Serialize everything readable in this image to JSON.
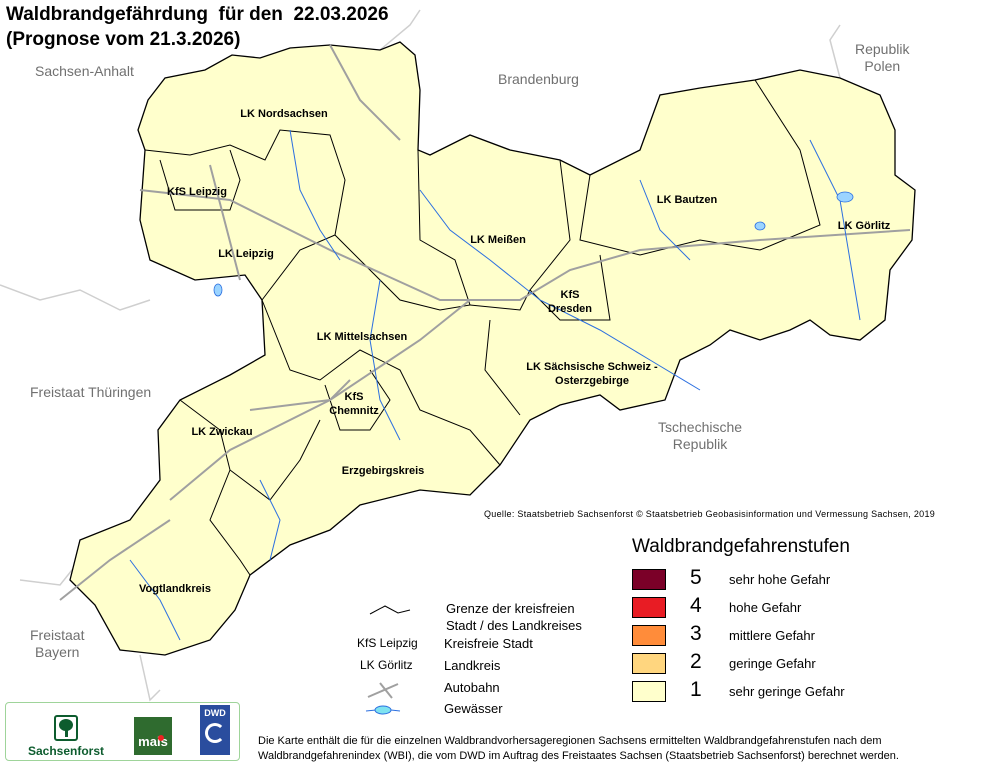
{
  "title": {
    "line1": "Waldbrandgefährdung  für den  22.03.2026",
    "line2": "(Prognose vom 21.3.2026)"
  },
  "neighbours": {
    "sachsen_anhalt": "Sachsen-Anhalt",
    "brandenburg": "Brandenburg",
    "polen": "Republik\nPolen",
    "thueringen": "Freistaat Thüringen",
    "tschechien": "Tschechische\nRepublik",
    "bayern": "Freistaat\nBayern"
  },
  "regions": [
    {
      "name": "LK Nordsachsen",
      "level": 1
    },
    {
      "name": "KfS Leipzig",
      "level": 1
    },
    {
      "name": "LK Leipzig",
      "level": 1
    },
    {
      "name": "LK Meißen",
      "level": 1
    },
    {
      "name": "LK Bautzen",
      "level": 1
    },
    {
      "name": "LK Görlitz",
      "level": 1
    },
    {
      "name": "KfS Dresden",
      "level": 1
    },
    {
      "name": "LK Mittelsachsen",
      "level": 1
    },
    {
      "name": "LK Sächsische Schweiz - Osterzgebirge",
      "level": 1
    },
    {
      "name": "KfS Chemnitz",
      "level": 1
    },
    {
      "name": "LK Zwickau",
      "level": 1
    },
    {
      "name": "Erzgebirgskreis",
      "level": 1
    },
    {
      "name": "Vogtlandkreis",
      "level": 1
    }
  ],
  "source": "Quelle: Staatsbetrieb Sachsenforst © Staatsbetrieb Geobasisinformation und Vermessung Sachsen, 2019",
  "legend": {
    "title": "Waldbrandgefahrenstufen",
    "levels": [
      {
        "level": "5",
        "label": "sehr hohe Gefahr",
        "color": "#7b0028"
      },
      {
        "level": "4",
        "label": "hohe Gefahr",
        "color": "#e81c24"
      },
      {
        "level": "3",
        "label": "mittlere Gefahr",
        "color": "#ff8c3a"
      },
      {
        "level": "2",
        "label": "geringe Gefahr",
        "color": "#ffd67f"
      },
      {
        "level": "1",
        "label": "sehr geringe Gefahr",
        "color": "#ffffcc"
      }
    ]
  },
  "key": {
    "boundary": "Grenze der kreisfreien\nStadt / des Landkreises",
    "kfs_example": "KfS Leipzig",
    "kfs": "Kreisfreie Stadt",
    "lk_example": "LK Görlitz",
    "lk": "Landkreis",
    "autobahn": "Autobahn",
    "water": "Gewässer"
  },
  "logos": {
    "sachsenforst": "Sachsenforst",
    "mais": "mais",
    "dwd": "DWD"
  },
  "footnote": "Die Karte enthält die für die einzelnen Waldbrandvorhersageregionen Sachsens ermittelten Waldbrandgefahrenstufen nach dem Waldbrandgefahrenindex (WBI), die vom DWD im Auftrag des Freistaates Sachsen (Staatsbetrieb Sachsenforst) berechnet werden."
}
